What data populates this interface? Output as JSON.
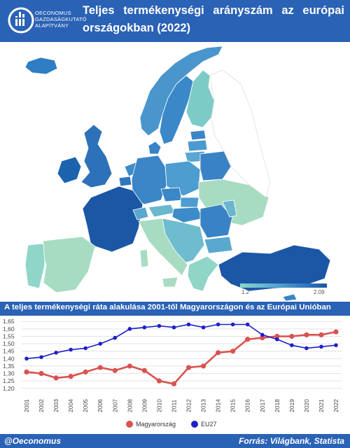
{
  "header": {
    "title": "Teljes termékenységi arányszám az európai országokban (2022)",
    "logo_lines": [
      "OECONOMUS",
      "GAZDASÁGKUTATÓ",
      "ALAPÍTVÁNY"
    ]
  },
  "map": {
    "legend_min": "1.2",
    "legend_max": "2.09",
    "colors": {
      "low": "#8fd6c8",
      "mid": "#3a82c6",
      "high": "#1c57a6",
      "nodata": "#e6e6e6"
    }
  },
  "subtitle": "A teljes termékenységi ráta alakulása 2001-től Magyarországon és az Európai Unióban",
  "chart_data": {
    "type": "line",
    "x": [
      "2001",
      "2002",
      "2003",
      "2004",
      "2005",
      "2006",
      "2007",
      "2008",
      "2009",
      "2010",
      "2011",
      "2012",
      "2013",
      "2014",
      "2015",
      "2016",
      "2017",
      "2018",
      "2019",
      "2020",
      "2021",
      "2022"
    ],
    "y_ticks": [
      "1,20",
      "1,25",
      "1,30",
      "1,35",
      "1,40",
      "1,45",
      "1,50",
      "1,55",
      "1,60",
      "1,65"
    ],
    "ylim": [
      1.18,
      1.67
    ],
    "grid": true,
    "legend_position": "bottom",
    "series": [
      {
        "name": "Magyarország",
        "color": "#d9534f",
        "values": [
          1.31,
          1.3,
          1.27,
          1.28,
          1.31,
          1.34,
          1.32,
          1.35,
          1.32,
          1.25,
          1.23,
          1.34,
          1.35,
          1.44,
          1.45,
          1.53,
          1.54,
          1.55,
          1.55,
          1.56,
          1.56,
          1.58
        ]
      },
      {
        "name": "EU27",
        "color": "#1f1fc9",
        "values": [
          1.4,
          1.41,
          1.44,
          1.46,
          1.47,
          1.5,
          1.54,
          1.6,
          1.61,
          1.62,
          1.61,
          1.63,
          1.61,
          1.63,
          1.63,
          1.63,
          1.56,
          1.53,
          1.49,
          1.47,
          1.48,
          1.49
        ]
      }
    ]
  },
  "footer": {
    "left": "@Oeconomus",
    "right": "Forrás: Világbank, Statista"
  }
}
